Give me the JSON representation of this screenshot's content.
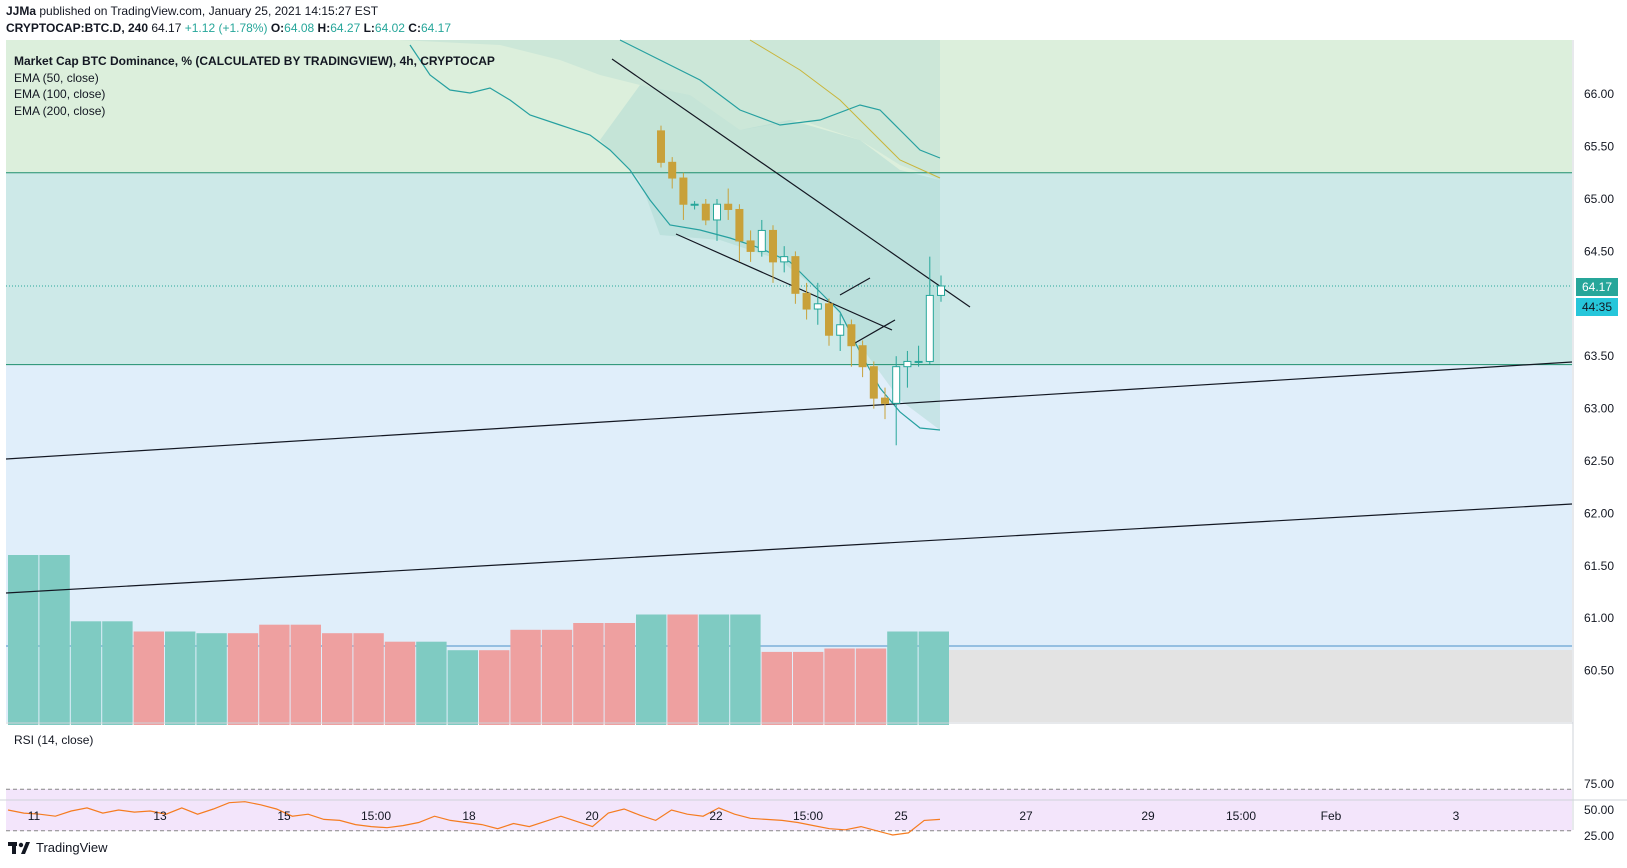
{
  "header": {
    "author": "JJMa",
    "published_text": "published on TradingView.com, January 25, 2021 14:15:27 EST",
    "symbol": "CRYPTOCAP:BTC.D, 240",
    "last": "64.17",
    "change": "+1.12 (+1.78%)",
    "o_label": "O:",
    "o": "64.08",
    "h_label": "H:",
    "h": "64.27",
    "l_label": "L:",
    "l": "64.02",
    "c_label": "C:",
    "c": "64.17"
  },
  "legend": {
    "title": "Market Cap BTC Dominance, % (CALCULATED BY TRADINGVIEW), 4h, CRYPTOCAP",
    "ema50": "EMA (50, close)",
    "ema100": "EMA (100, close)",
    "ema200": "EMA (200, close)"
  },
  "rsi_label": "RSI (14, close)",
  "price_tags": {
    "last": "64.17",
    "countdown": "44:35"
  },
  "footer": {
    "brand": "TradingView"
  },
  "colors": {
    "up": "#26a69a",
    "down": "#ef5350",
    "candle_down": "#c8a13a",
    "zone_top": "#dcefdc",
    "zone_mid": "#cde9e8",
    "zone_low": "#e0eefa",
    "rsi_bg": "#f3e5fb",
    "rsi_line": "#f57c20",
    "ema": "#26a0a0"
  },
  "chart_data": {
    "type": "candlestick",
    "ylim": [
      60.0,
      66.6
    ],
    "y_ticks": [
      {
        "v": 66.0,
        "label": "66.00"
      },
      {
        "v": 65.5,
        "label": "65.50"
      },
      {
        "v": 65.0,
        "label": "65.00"
      },
      {
        "v": 64.5,
        "label": "64.50"
      },
      {
        "v": 64.0,
        "label": "64.00"
      },
      {
        "v": 63.5,
        "label": "63.50"
      },
      {
        "v": 63.0,
        "label": "63.00"
      },
      {
        "v": 62.5,
        "label": "62.50"
      },
      {
        "v": 62.0,
        "label": "62.00"
      },
      {
        "v": 61.5,
        "label": "61.50"
      },
      {
        "v": 61.0,
        "label": "61.00"
      },
      {
        "v": 60.5,
        "label": "60.50"
      }
    ],
    "x_ticks": [
      "11",
      "13",
      "15",
      "15:00",
      "18",
      "20",
      "22",
      "15:00",
      "25",
      "27",
      "29",
      "15:00",
      "Feb",
      "3"
    ],
    "rsi_ticks": [
      {
        "v": 75,
        "label": "75.00"
      },
      {
        "v": 50,
        "label": "50.00"
      },
      {
        "v": 25,
        "label": "25.00"
      }
    ],
    "rsi_bands": [
      70,
      30
    ],
    "horizontal_levels": [
      65.25,
      63.42
    ],
    "candles": [
      [
        65.65,
        65.35,
        65.7,
        65.3
      ],
      [
        65.35,
        65.2,
        65.4,
        65.1
      ],
      [
        65.2,
        64.95,
        65.25,
        64.8
      ],
      [
        64.95,
        64.95,
        64.98,
        64.9
      ],
      [
        64.95,
        64.8,
        65.0,
        64.75
      ],
      [
        64.8,
        64.95,
        65.0,
        64.6
      ],
      [
        64.95,
        64.9,
        65.1,
        64.8
      ],
      [
        64.9,
        64.6,
        64.95,
        64.4
      ],
      [
        64.6,
        64.5,
        64.7,
        64.4
      ],
      [
        64.5,
        64.7,
        64.8,
        64.45
      ],
      [
        64.7,
        64.4,
        64.75,
        64.2
      ],
      [
        64.4,
        64.45,
        64.55,
        64.3
      ],
      [
        64.45,
        64.1,
        64.5,
        64.0
      ],
      [
        64.1,
        63.95,
        64.2,
        63.85
      ],
      [
        63.95,
        64.0,
        64.2,
        63.8
      ],
      [
        64.0,
        63.7,
        64.05,
        63.6
      ],
      [
        63.7,
        63.8,
        63.9,
        63.55
      ],
      [
        63.8,
        63.6,
        63.85,
        63.4
      ],
      [
        63.6,
        63.4,
        63.65,
        63.3
      ],
      [
        63.4,
        63.1,
        63.45,
        63.0
      ],
      [
        63.1,
        63.05,
        63.2,
        62.9
      ],
      [
        63.05,
        63.4,
        63.5,
        62.65
      ],
      [
        63.4,
        63.45,
        63.55,
        63.2
      ],
      [
        63.45,
        63.45,
        63.6,
        63.4
      ],
      [
        63.45,
        64.08,
        64.45,
        63.42
      ],
      [
        64.08,
        64.17,
        64.27,
        64.02
      ]
    ],
    "volume": [
      [
        1.0,
        "up"
      ],
      [
        1.0,
        "up"
      ],
      [
        0.61,
        "up"
      ],
      [
        0.61,
        "up"
      ],
      [
        0.55,
        "down"
      ],
      [
        0.55,
        "up"
      ],
      [
        0.54,
        "up"
      ],
      [
        0.54,
        "down"
      ],
      [
        0.59,
        "down"
      ],
      [
        0.59,
        "down"
      ],
      [
        0.54,
        "down"
      ],
      [
        0.54,
        "down"
      ],
      [
        0.49,
        "down"
      ],
      [
        0.49,
        "up"
      ],
      [
        0.44,
        "up"
      ],
      [
        0.44,
        "down"
      ],
      [
        0.56,
        "down"
      ],
      [
        0.56,
        "down"
      ],
      [
        0.6,
        "down"
      ],
      [
        0.6,
        "down"
      ],
      [
        0.65,
        "up"
      ],
      [
        0.65,
        "down"
      ],
      [
        0.65,
        "up"
      ],
      [
        0.65,
        "up"
      ],
      [
        0.43,
        "down"
      ],
      [
        0.43,
        "down"
      ],
      [
        0.45,
        "down"
      ],
      [
        0.45,
        "down"
      ],
      [
        0.55,
        "up"
      ],
      [
        0.55,
        "up"
      ]
    ],
    "rsi": [
      50,
      47,
      46,
      44,
      49,
      52,
      47,
      50,
      48,
      49,
      46,
      52,
      46,
      51,
      57,
      58,
      55,
      51,
      44,
      46,
      41,
      40,
      36,
      34,
      33,
      35,
      38,
      44,
      40,
      38,
      36,
      32,
      37,
      34,
      39,
      44,
      39,
      34,
      47,
      51,
      45,
      40,
      50,
      46,
      44,
      52,
      46,
      42,
      41,
      40,
      38,
      35,
      32,
      31,
      34,
      30,
      26,
      28,
      40,
      41
    ]
  }
}
